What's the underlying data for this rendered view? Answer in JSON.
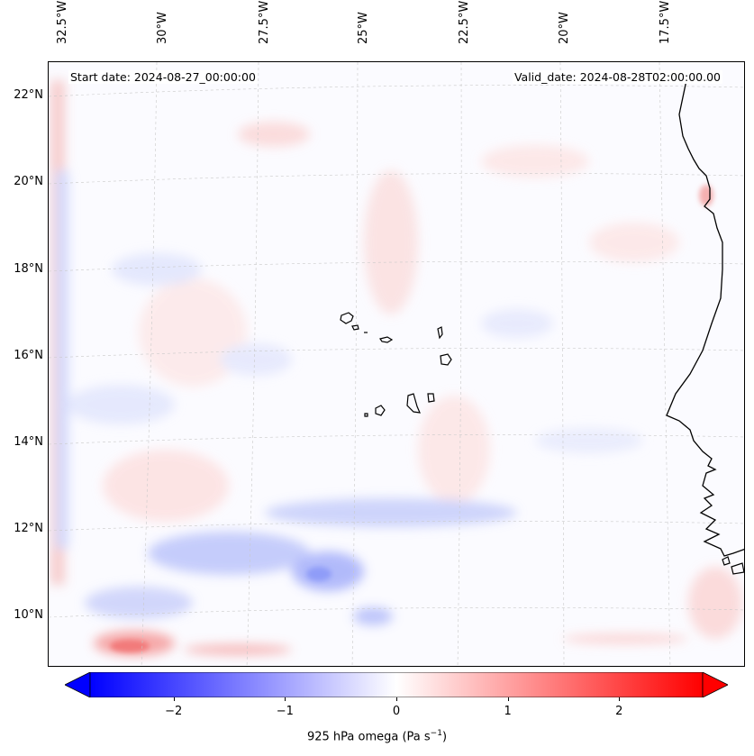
{
  "map": {
    "start_date": "Start date: 2024-08-27_00:00:00",
    "valid_date": "Valid_date: 2024-08-28T02:00:00.00",
    "lon_labels": [
      "32.5°W",
      "30°W",
      "27.5°W",
      "25°W",
      "22.5°W",
      "20°W",
      "17.5°W"
    ],
    "lat_labels": [
      "22°N",
      "20°N",
      "18°N",
      "16°N",
      "14°N",
      "12°N",
      "10°N"
    ],
    "field": "925 hPa omega",
    "colormap": "bwr"
  },
  "colorbar": {
    "label_main": "925 hPa omega (Pa s",
    "label_exp": "−1",
    "label_close": ")",
    "ticks": [
      "−2",
      "−1",
      "0",
      "1",
      "2"
    ],
    "tick_values": [
      -2,
      -1,
      0,
      1,
      2
    ],
    "range": [
      -2.75,
      2.75
    ],
    "extend": "both",
    "colors": {
      "low": "#0000ff",
      "mid": "#ffffff",
      "high": "#ff0000"
    }
  }
}
